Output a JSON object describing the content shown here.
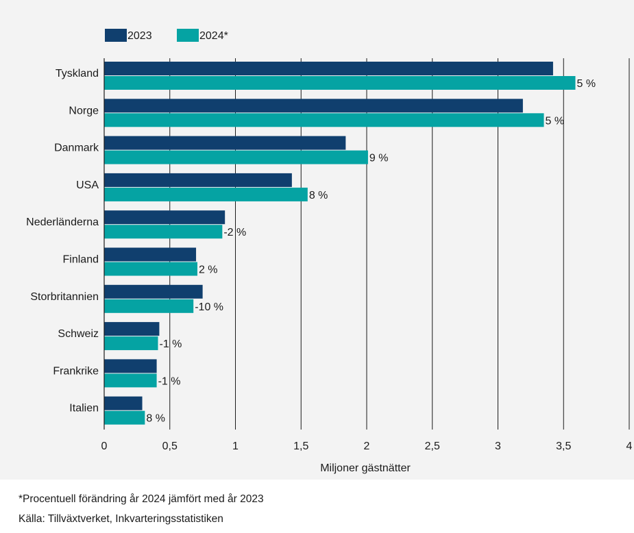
{
  "chart_data": {
    "type": "bar",
    "orientation": "horizontal",
    "categories": [
      "Tyskland",
      "Norge",
      "Danmark",
      "USA",
      "Nederländerna",
      "Finland",
      "Storbritannien",
      "Schweiz",
      "Frankrike",
      "Italien"
    ],
    "series": [
      {
        "name": "2023",
        "color": "#103f6e",
        "values": [
          3.42,
          3.19,
          1.84,
          1.43,
          0.92,
          0.7,
          0.75,
          0.42,
          0.4,
          0.29
        ]
      },
      {
        "name": "2024*",
        "color": "#05a3a3",
        "values": [
          3.59,
          3.35,
          2.01,
          1.55,
          0.9,
          0.71,
          0.68,
          0.41,
          0.4,
          0.31
        ],
        "data_labels": [
          "5 %",
          "5 %",
          "9 %",
          "8 %",
          "-2 %",
          "2 %",
          "-10 %",
          "-1 %",
          "-1 %",
          "8 %"
        ]
      }
    ],
    "xlabel": "Miljoner gästnätter",
    "xlim": [
      0,
      4
    ],
    "xticks": [
      0,
      0.5,
      1,
      1.5,
      2,
      2.5,
      3,
      3.5,
      4
    ],
    "xtick_labels": [
      "0",
      "0,5",
      "1",
      "1,5",
      "2",
      "2,5",
      "3",
      "3,5",
      "4"
    ],
    "grid": "vertical",
    "legend": "top-left"
  },
  "notes": {
    "footnote": "*Procentuell förändring år 2024 jämfört med år 2023",
    "source": "Källa: Tillväxtverket, Inkvarteringsstatistiken"
  }
}
